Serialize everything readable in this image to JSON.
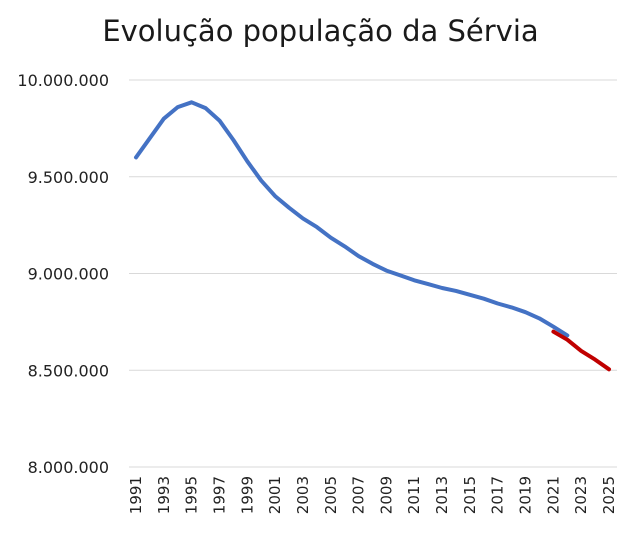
{
  "chart_data": {
    "type": "line",
    "title": "Evolução população da Sérvia",
    "xlabel": "",
    "ylabel": "",
    "ylim": [
      8000000,
      10000000
    ],
    "yticks": [
      "10.000.000",
      "9.500.000",
      "9.000.000",
      "8.500.000",
      "8.000.000"
    ],
    "ytick_values": [
      10000000,
      9500000,
      9000000,
      8500000,
      8000000
    ],
    "xticks": [
      "1991",
      "1993",
      "1995",
      "1997",
      "1999",
      "2001",
      "2003",
      "2005",
      "2007",
      "2009",
      "2011",
      "2013",
      "2015",
      "2017",
      "2019",
      "2021",
      "2023",
      "2025"
    ],
    "grid": true,
    "legend": "none",
    "series": [
      {
        "color": "#4472c4",
        "x": [
          1991,
          1992,
          1993,
          1994,
          1995,
          1996,
          1997,
          1998,
          1999,
          2000,
          2001,
          2002,
          2003,
          2004,
          2005,
          2006,
          2007,
          2008,
          2009,
          2010,
          2011,
          2012,
          2013,
          2014,
          2015,
          2016,
          2017,
          2018,
          2019,
          2020,
          2021,
          2022
        ],
        "values": [
          9600000,
          9700000,
          9800000,
          9860000,
          9885000,
          9855000,
          9790000,
          9690000,
          9580000,
          9480000,
          9400000,
          9340000,
          9285000,
          9240000,
          9185000,
          9140000,
          9090000,
          9050000,
          9015000,
          8990000,
          8965000,
          8945000,
          8925000,
          8910000,
          8890000,
          8870000,
          8845000,
          8825000,
          8800000,
          8768000,
          8725000,
          8680000
        ]
      },
      {
        "color": "#c00000",
        "x": [
          2021,
          2022,
          2023,
          2024,
          2025
        ],
        "values": [
          8700000,
          8658000,
          8600000,
          8555000,
          8505000
        ]
      }
    ]
  }
}
